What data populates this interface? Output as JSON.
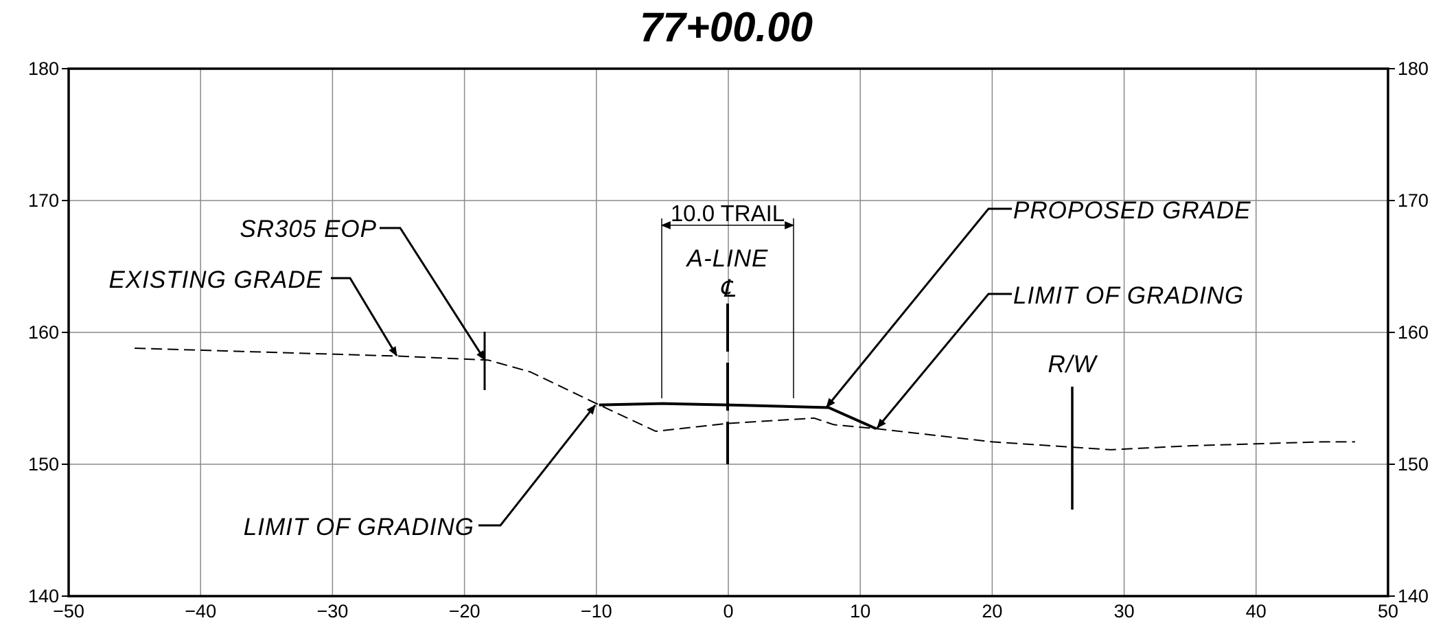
{
  "chart_data": {
    "type": "line",
    "title": "77+00.00",
    "xlim": [
      -50,
      50
    ],
    "ylim": [
      140,
      180
    ],
    "x_ticks": [
      "−50",
      "−40",
      "−30",
      "−20",
      "−10",
      "0",
      "10",
      "20",
      "30",
      "40",
      "50"
    ],
    "y_ticks": [
      "140",
      "150",
      "160",
      "170",
      "180"
    ],
    "grid": true,
    "series": [
      {
        "style": "dashed",
        "x": [
          -45,
          -25,
          -18.2,
          -15,
          -10,
          -5.5,
          0,
          6.5,
          8,
          11.2,
          20,
          29,
          35,
          45,
          47.5
        ],
        "y": [
          158.8,
          158.2,
          157.9,
          157,
          154.6,
          152.5,
          153.1,
          153.5,
          153,
          152.7,
          151.7,
          151.1,
          151.4,
          151.7,
          151.7
        ]
      },
      {
        "style": "solid-heavy",
        "x": [
          -9.8,
          -5,
          0,
          7.6,
          11.2
        ],
        "y": [
          154.5,
          154.6,
          154.5,
          154.3,
          152.7
        ]
      }
    ],
    "annotations": {
      "trail_dimension": "10.0 TRAIL",
      "centerline_name": "A-LINE",
      "centerline_symbol": "℄",
      "proposed_grade": "PROPOSED GRADE",
      "limit_of_grading_right": "LIMIT OF GRADING",
      "limit_of_grading_left": "LIMIT OF GRADING",
      "existing_grade": "EXISTING GRADE",
      "sr305_eop": "SR305 EOP",
      "right_of_way": "R/W"
    }
  }
}
